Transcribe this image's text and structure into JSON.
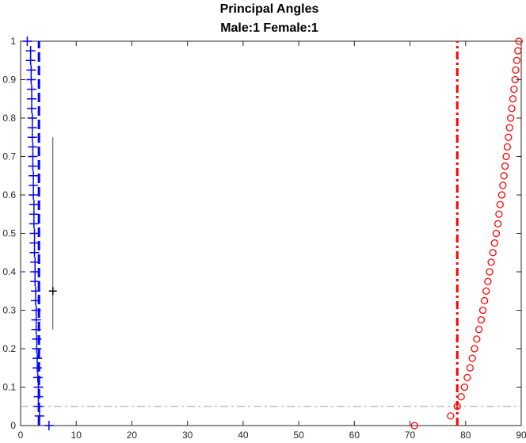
{
  "chart_data": {
    "type": "scatter",
    "title": "Principal Angles",
    "subtitle": "Male:1  Female:1",
    "xlim": [
      0,
      90
    ],
    "ylim": [
      0,
      1
    ],
    "xticks": [
      "0",
      "10",
      "20",
      "30",
      "40",
      "50",
      "60",
      "70",
      "80",
      "90"
    ],
    "yticks": [
      "0",
      "0.1",
      "0.2",
      "0.3",
      "0.4",
      "0.5",
      "0.6",
      "0.7",
      "0.8",
      "0.9",
      "1"
    ],
    "grid": false,
    "legend": "none",
    "series": [
      {
        "marker": "plus",
        "color": "#0000ff",
        "x": [
          5.1,
          3.4,
          3.2,
          3.2,
          3.2,
          3.1,
          3.0,
          3.0,
          2.9,
          2.9,
          2.8,
          2.8,
          2.8,
          2.7,
          2.7,
          2.6,
          2.6,
          2.6,
          2.5,
          2.5,
          2.5,
          2.4,
          2.4,
          2.4,
          2.3,
          2.3,
          2.3,
          2.2,
          2.2,
          2.2,
          2.1,
          2.1,
          2.1,
          2.0,
          2.0,
          2.0,
          1.9,
          1.9,
          1.8,
          1.8,
          1.2
        ],
        "y": [
          0,
          0.025,
          0.05,
          0.075,
          0.1,
          0.125,
          0.15,
          0.175,
          0.2,
          0.225,
          0.25,
          0.275,
          0.3,
          0.325,
          0.35,
          0.375,
          0.4,
          0.425,
          0.45,
          0.475,
          0.5,
          0.525,
          0.55,
          0.575,
          0.6,
          0.625,
          0.65,
          0.675,
          0.7,
          0.725,
          0.75,
          0.775,
          0.8,
          0.825,
          0.85,
          0.875,
          0.9,
          0.925,
          0.95,
          0.975,
          1.0
        ]
      },
      {
        "marker": "circle",
        "color": "#ff0000",
        "x": [
          70.8,
          77.3,
          78.5,
          79.2,
          79.8,
          80.3,
          80.8,
          81.2,
          81.6,
          82.0,
          82.4,
          82.8,
          83.1,
          83.4,
          83.7,
          84.0,
          84.3,
          84.6,
          84.9,
          85.2,
          85.5,
          85.8,
          86.0,
          86.2,
          86.5,
          86.7,
          86.9,
          87.1,
          87.3,
          87.5,
          87.7,
          87.9,
          88.1,
          88.3,
          88.5,
          88.7,
          88.9,
          89.0,
          89.2,
          89.4,
          89.6
        ],
        "y": [
          0,
          0.025,
          0.05,
          0.075,
          0.1,
          0.125,
          0.15,
          0.175,
          0.2,
          0.225,
          0.25,
          0.275,
          0.3,
          0.325,
          0.35,
          0.375,
          0.4,
          0.425,
          0.45,
          0.475,
          0.5,
          0.525,
          0.55,
          0.575,
          0.6,
          0.625,
          0.65,
          0.675,
          0.7,
          0.725,
          0.75,
          0.775,
          0.8,
          0.825,
          0.85,
          0.875,
          0.9,
          0.925,
          0.95,
          0.975,
          1.0
        ]
      }
    ],
    "reference_lines": [
      {
        "orientation": "vertical",
        "x": 3.3,
        "y_range": [
          0,
          1
        ],
        "color": "#0000ff",
        "style": "dashed"
      },
      {
        "orientation": "vertical",
        "x": 78.5,
        "y_range": [
          0,
          1
        ],
        "color": "#ff0000",
        "style": "dashdot"
      },
      {
        "orientation": "horizontal",
        "y": 0.05,
        "x_range": [
          0,
          90
        ],
        "color": "#b4b4b4",
        "style": "dashdot"
      }
    ],
    "errorbar": {
      "x": 5.8,
      "y": 0.35,
      "y_low": 0.25,
      "y_high": 0.75,
      "color": "#000000"
    }
  }
}
